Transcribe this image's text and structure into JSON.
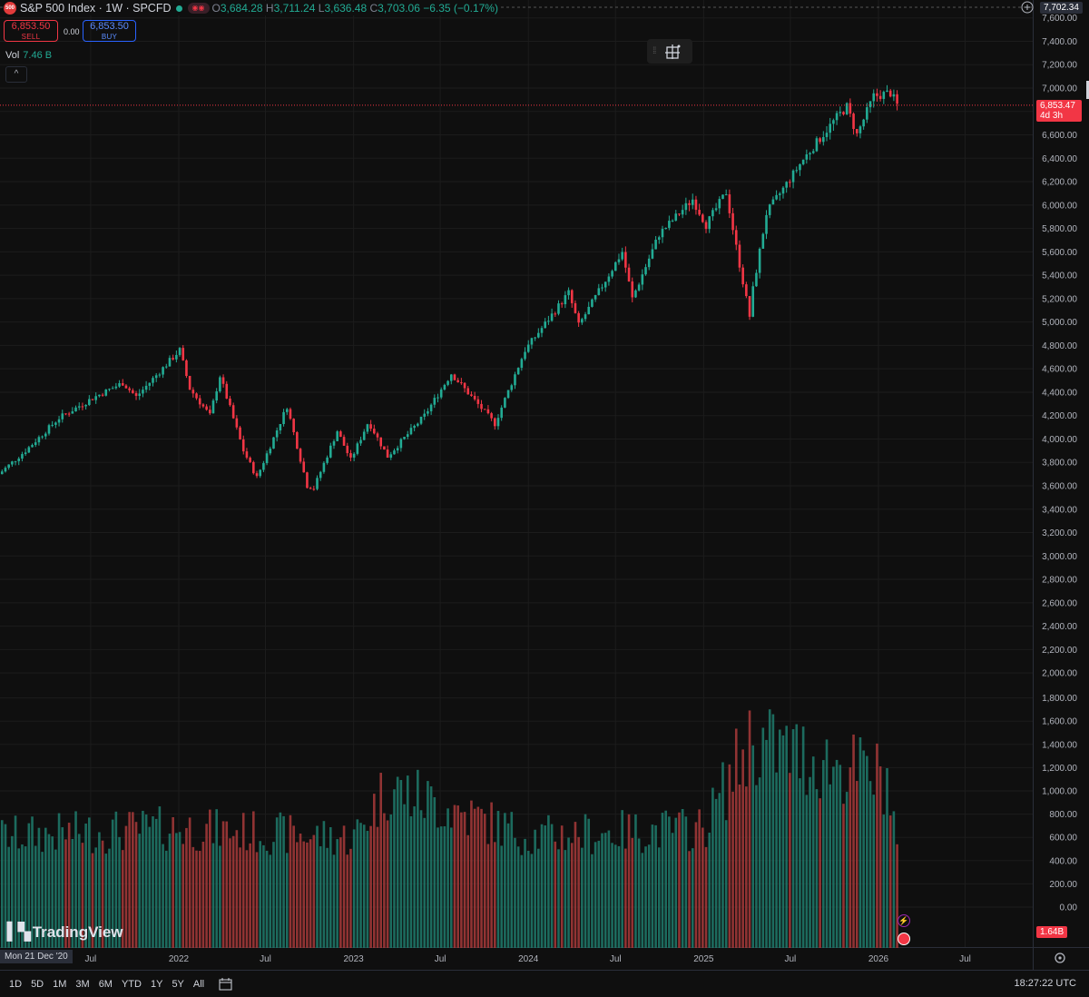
{
  "header": {
    "symbol_badge": "500",
    "title": "S&P 500 Index · 1W · SPCFD",
    "ohlc": {
      "o_label": "O",
      "o": "3,684.28",
      "h_label": "H",
      "h": "3,711.24",
      "l_label": "L",
      "l": "3,636.48",
      "c_label": "C",
      "c": "3,703.06",
      "change": "−6.35 (−0.17%)"
    },
    "sell": {
      "price": "6,853.50",
      "label": "SELL"
    },
    "buy": {
      "price": "6,853.50",
      "label": "BUY"
    },
    "spread": "0.00",
    "vol_label": "Vol",
    "vol_value": "7.46 B",
    "collapse_icon": "^"
  },
  "price_axis": {
    "top_label": "7,702.34",
    "current_price": "6,853.47",
    "countdown": "4d 3h",
    "vol_badge": "1.64B"
  },
  "time_axis": {
    "start_date": "Mon 21 Dec '20"
  },
  "bottom_bar": {
    "ranges": [
      "1D",
      "5D",
      "1M",
      "3M",
      "6M",
      "YTD",
      "1Y",
      "5Y",
      "All"
    ],
    "clock": "18:27:22 UTC"
  },
  "logo": {
    "text": "TradingView"
  },
  "colors": {
    "up": "#22ab94",
    "down": "#f23645",
    "background": "#0f0f0f",
    "grid": "#1c1c1c"
  },
  "chart_data": {
    "type": "candlestick",
    "interval": "1W",
    "price_ylim": [
      3100,
      7702.34
    ],
    "price_ticks": [
      2000,
      2200,
      2400,
      2600,
      2800,
      3000,
      3200,
      3400,
      3600,
      3800,
      4000,
      4200,
      4400,
      4600,
      4800,
      5000,
      5200,
      5400,
      5600,
      5800,
      6000,
      6200,
      6400,
      6600,
      6800,
      7000,
      7200,
      7400,
      7600
    ],
    "volume_ticks": [
      0,
      200,
      400,
      600,
      800,
      1000,
      1200,
      1400,
      1600,
      1800
    ],
    "volume_unit": "M",
    "x_tick_labels": [
      {
        "label": "Jul",
        "date": "2021-07-01"
      },
      {
        "label": "2022",
        "date": "2022-01-01"
      },
      {
        "label": "Jul",
        "date": "2022-07-01"
      },
      {
        "label": "2023",
        "date": "2023-01-01"
      },
      {
        "label": "Jul",
        "date": "2023-07-01"
      },
      {
        "label": "2024",
        "date": "2024-01-01"
      },
      {
        "label": "Jul",
        "date": "2024-07-01"
      },
      {
        "label": "2025",
        "date": "2025-01-01"
      },
      {
        "label": "Jul",
        "date": "2025-07-01"
      },
      {
        "label": "2026",
        "date": "2026-01-01"
      },
      {
        "label": "Jul",
        "date": "2026-07-01"
      }
    ],
    "close_anchors": [
      {
        "date": "2020-12-21",
        "close": 3700
      },
      {
        "date": "2021-02-15",
        "close": 3900
      },
      {
        "date": "2021-04-26",
        "close": 4180
      },
      {
        "date": "2021-07-05",
        "close": 4350
      },
      {
        "date": "2021-09-06",
        "close": 4480
      },
      {
        "date": "2021-10-04",
        "close": 4360
      },
      {
        "date": "2022-01-03",
        "close": 4760
      },
      {
        "date": "2022-01-24",
        "close": 4430
      },
      {
        "date": "2022-03-07",
        "close": 4200
      },
      {
        "date": "2022-03-28",
        "close": 4540
      },
      {
        "date": "2022-05-16",
        "close": 3900
      },
      {
        "date": "2022-06-13",
        "close": 3670
      },
      {
        "date": "2022-08-15",
        "close": 4280
      },
      {
        "date": "2022-09-26",
        "close": 3600
      },
      {
        "date": "2022-10-10",
        "close": 3580
      },
      {
        "date": "2022-11-28",
        "close": 4070
      },
      {
        "date": "2022-12-26",
        "close": 3820
      },
      {
        "date": "2023-02-01",
        "close": 4150
      },
      {
        "date": "2023-03-13",
        "close": 3850
      },
      {
        "date": "2023-05-29",
        "close": 4200
      },
      {
        "date": "2023-07-24",
        "close": 4560
      },
      {
        "date": "2023-10-23",
        "close": 4130
      },
      {
        "date": "2023-12-25",
        "close": 4760
      },
      {
        "date": "2024-03-25",
        "close": 5250
      },
      {
        "date": "2024-04-15",
        "close": 4970
      },
      {
        "date": "2024-07-15",
        "close": 5600
      },
      {
        "date": "2024-08-05",
        "close": 5200
      },
      {
        "date": "2024-09-30",
        "close": 5750
      },
      {
        "date": "2024-12-09",
        "close": 6050
      },
      {
        "date": "2025-01-06",
        "close": 5830
      },
      {
        "date": "2025-02-17",
        "close": 6110
      },
      {
        "date": "2025-03-10",
        "close": 5640
      },
      {
        "date": "2025-04-07",
        "close": 5050
      },
      {
        "date": "2025-04-14",
        "close": 5280
      },
      {
        "date": "2025-05-12",
        "close": 5930
      },
      {
        "date": "2025-07-28",
        "close": 6390
      },
      {
        "date": "2025-10-06",
        "close": 6750
      },
      {
        "date": "2025-10-27",
        "close": 6840
      },
      {
        "date": "2025-11-17",
        "close": 6600
      },
      {
        "date": "2025-12-22",
        "close": 6930
      },
      {
        "date": "2026-01-26",
        "close": 6960
      },
      {
        "date": "2026-02-09",
        "close": 6853.47
      }
    ],
    "volume_anchors": [
      {
        "date": "2021-01-01",
        "volume": 720
      },
      {
        "date": "2022-01-01",
        "volume": 800
      },
      {
        "date": "2023-01-01",
        "volume": 700
      },
      {
        "date": "2023-03-13",
        "volume": 1220
      },
      {
        "date": "2024-01-01",
        "volume": 720
      },
      {
        "date": "2025-01-01",
        "volume": 800
      },
      {
        "date": "2025-04-07",
        "volume": 1680
      },
      {
        "date": "2026-01-19",
        "volume": 1300
      },
      {
        "date": "2026-02-09",
        "volume": 620
      }
    ]
  }
}
